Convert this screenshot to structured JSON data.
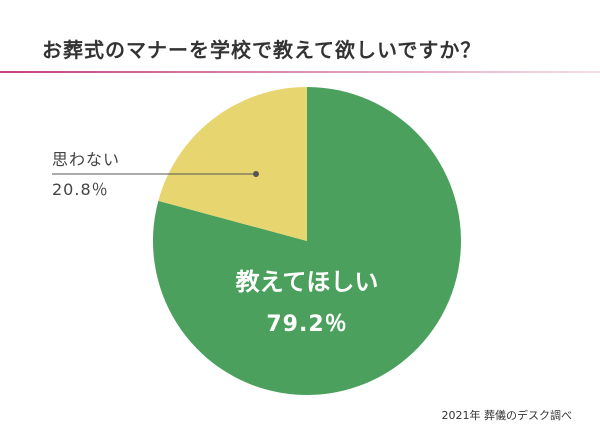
{
  "title": "お葬式のマナーを学校で教えて欲しいですか？",
  "source": "2021年 葬儀のデスク調べ",
  "colors": {
    "rule_start": "#c6407f",
    "rule_end": "#f3dfe9",
    "green": "#4aa05c",
    "yellow": "#e7d66f",
    "leader": "#555555"
  },
  "chart_data": {
    "type": "pie",
    "title": "お葬式のマナーを学校で教えて欲しいですか？",
    "slices": [
      {
        "label": "教えてほしい",
        "value": 79.2,
        "value_label": "79.2％",
        "color": "#4aa05c"
      },
      {
        "label": "思わない",
        "value": 20.8,
        "value_label": "20.8％",
        "color": "#e7d66f"
      }
    ]
  }
}
